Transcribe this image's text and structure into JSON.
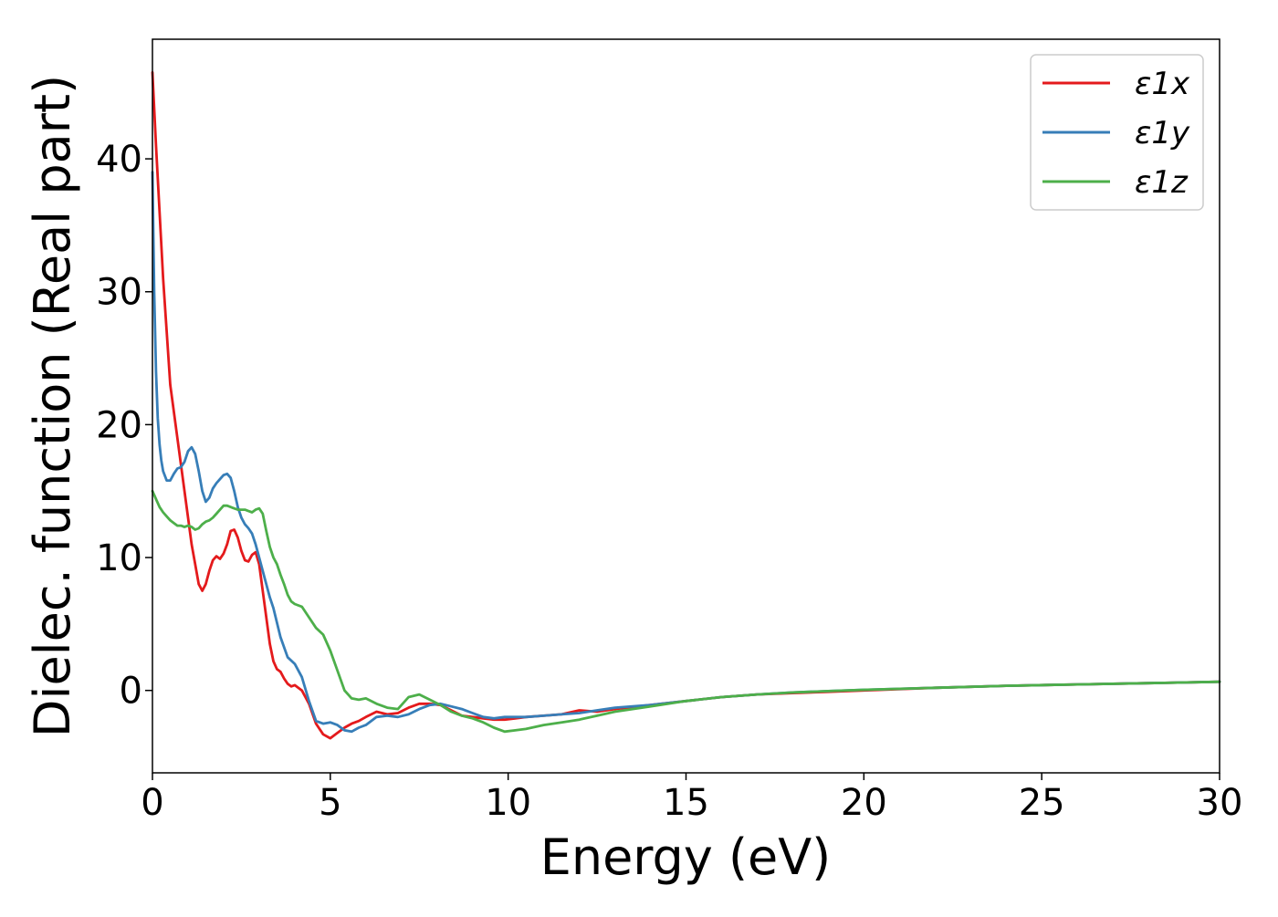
{
  "chart_data": {
    "type": "line",
    "title": "",
    "xlabel": "Energy (eV)",
    "ylabel": "Dielec. function (Real part)",
    "xlim": [
      0,
      30
    ],
    "ylim": [
      -6.2,
      49
    ],
    "xticks": [
      0,
      5,
      10,
      15,
      20,
      25,
      30
    ],
    "yticks": [
      0,
      10,
      20,
      30,
      40
    ],
    "grid": false,
    "legend_position": "top-right",
    "series": [
      {
        "name": "ε1x",
        "color": "#e41a1c",
        "x": [
          0,
          0.1,
          0.2,
          0.3,
          0.4,
          0.5,
          0.6,
          0.7,
          0.8,
          0.9,
          1.0,
          1.1,
          1.2,
          1.3,
          1.4,
          1.5,
          1.6,
          1.7,
          1.8,
          1.9,
          2.0,
          2.1,
          2.2,
          2.3,
          2.4,
          2.5,
          2.6,
          2.7,
          2.8,
          2.9,
          3.0,
          3.1,
          3.2,
          3.3,
          3.4,
          3.5,
          3.6,
          3.7,
          3.8,
          3.9,
          4.0,
          4.2,
          4.4,
          4.6,
          4.8,
          5.0,
          5.2,
          5.4,
          5.6,
          5.8,
          6.0,
          6.3,
          6.6,
          6.9,
          7.2,
          7.5,
          7.8,
          8.1,
          8.4,
          8.7,
          9.0,
          9.3,
          9.6,
          9.9,
          10.2,
          10.5,
          11.0,
          11.5,
          12.0,
          12.5,
          13.0,
          14.0,
          15.0,
          16.0,
          17.0,
          18.0,
          19.0,
          20.0,
          22.0,
          24.0,
          26.0,
          28.0,
          30.0
        ],
        "values": [
          46.5,
          41,
          36,
          31,
          27,
          23,
          21,
          19,
          17,
          15,
          13,
          11,
          9.5,
          8,
          7.5,
          8,
          9,
          9.8,
          10.1,
          9.9,
          10.3,
          11,
          12,
          12.1,
          11.5,
          10.5,
          9.8,
          9.7,
          10.2,
          10.4,
          9.5,
          7.5,
          5.5,
          3.5,
          2.2,
          1.6,
          1.4,
          0.9,
          0.5,
          0.3,
          0.4,
          0.0,
          -1.0,
          -2.5,
          -3.3,
          -3.6,
          -3.2,
          -2.8,
          -2.5,
          -2.3,
          -2.0,
          -1.6,
          -1.8,
          -1.7,
          -1.3,
          -1.0,
          -1.0,
          -1.1,
          -1.5,
          -1.9,
          -2.0,
          -2.1,
          -2.2,
          -2.2,
          -2.1,
          -2.0,
          -1.9,
          -1.8,
          -1.5,
          -1.6,
          -1.4,
          -1.1,
          -0.8,
          -0.5,
          -0.3,
          -0.2,
          -0.1,
          0.0,
          0.2,
          0.35,
          0.45,
          0.55,
          0.65
        ]
      },
      {
        "name": "ε1y",
        "color": "#377eb8",
        "x": [
          0,
          0.05,
          0.1,
          0.15,
          0.2,
          0.25,
          0.3,
          0.4,
          0.5,
          0.6,
          0.7,
          0.8,
          0.9,
          1.0,
          1.1,
          1.2,
          1.3,
          1.4,
          1.5,
          1.6,
          1.7,
          1.8,
          1.9,
          2.0,
          2.1,
          2.2,
          2.3,
          2.4,
          2.5,
          2.6,
          2.7,
          2.8,
          2.9,
          3.0,
          3.1,
          3.2,
          3.3,
          3.4,
          3.6,
          3.8,
          4.0,
          4.2,
          4.4,
          4.6,
          4.8,
          5.0,
          5.2,
          5.4,
          5.6,
          5.8,
          6.0,
          6.3,
          6.6,
          6.9,
          7.2,
          7.5,
          7.8,
          8.1,
          8.4,
          8.7,
          9.0,
          9.3,
          9.6,
          9.9,
          10.2,
          10.5,
          11.0,
          11.5,
          12.0,
          12.5,
          13.0,
          14.0,
          15.0,
          16.0,
          17.0,
          18.0,
          19.0,
          20.0,
          22.0,
          24.0,
          26.0,
          28.0,
          30.0
        ],
        "values": [
          39,
          30,
          24,
          20.5,
          18.5,
          17.3,
          16.5,
          15.8,
          15.8,
          16.3,
          16.7,
          16.8,
          17.2,
          18.0,
          18.3,
          17.8,
          16.5,
          15.0,
          14.2,
          14.5,
          15.2,
          15.6,
          15.9,
          16.2,
          16.3,
          16.0,
          15.0,
          13.8,
          13.0,
          12.5,
          12.2,
          11.8,
          11.0,
          10.0,
          9.0,
          8.0,
          7.0,
          6.2,
          4.0,
          2.5,
          2.0,
          1.0,
          -0.8,
          -2.3,
          -2.5,
          -2.4,
          -2.6,
          -3.0,
          -3.1,
          -2.8,
          -2.6,
          -2.0,
          -1.9,
          -2.0,
          -1.8,
          -1.4,
          -1.1,
          -1.0,
          -1.2,
          -1.4,
          -1.7,
          -2.0,
          -2.1,
          -2.0,
          -2.0,
          -2.0,
          -1.9,
          -1.8,
          -1.7,
          -1.5,
          -1.3,
          -1.1,
          -0.8,
          -0.5,
          -0.3,
          -0.15,
          -0.05,
          0.05,
          0.2,
          0.35,
          0.45,
          0.55,
          0.65
        ]
      },
      {
        "name": "ε1z",
        "color": "#4daf4a",
        "x": [
          0,
          0.1,
          0.2,
          0.3,
          0.4,
          0.5,
          0.6,
          0.7,
          0.8,
          0.9,
          1.0,
          1.1,
          1.2,
          1.3,
          1.4,
          1.5,
          1.6,
          1.7,
          1.8,
          1.9,
          2.0,
          2.1,
          2.2,
          2.3,
          2.4,
          2.5,
          2.6,
          2.7,
          2.8,
          2.9,
          3.0,
          3.1,
          3.2,
          3.3,
          3.4,
          3.5,
          3.6,
          3.7,
          3.8,
          3.9,
          4.0,
          4.2,
          4.4,
          4.6,
          4.8,
          5.0,
          5.2,
          5.4,
          5.6,
          5.8,
          6.0,
          6.3,
          6.6,
          6.9,
          7.2,
          7.5,
          7.8,
          8.1,
          8.4,
          8.7,
          9.0,
          9.3,
          9.6,
          9.9,
          10.2,
          10.5,
          11.0,
          11.5,
          12.0,
          12.5,
          13.0,
          14.0,
          15.0,
          16.0,
          17.0,
          18.0,
          19.0,
          20.0,
          22.0,
          24.0,
          26.0,
          28.0,
          30.0
        ],
        "values": [
          15.0,
          14.4,
          13.8,
          13.4,
          13.1,
          12.8,
          12.6,
          12.4,
          12.4,
          12.3,
          12.4,
          12.3,
          12.1,
          12.2,
          12.5,
          12.7,
          12.8,
          13.0,
          13.3,
          13.6,
          13.9,
          13.9,
          13.8,
          13.7,
          13.6,
          13.6,
          13.6,
          13.5,
          13.4,
          13.6,
          13.7,
          13.3,
          12.0,
          10.8,
          10.0,
          9.5,
          8.7,
          8.0,
          7.2,
          6.7,
          6.5,
          6.3,
          5.5,
          4.7,
          4.2,
          3.0,
          1.5,
          0.0,
          -0.6,
          -0.7,
          -0.6,
          -1.0,
          -1.3,
          -1.4,
          -0.5,
          -0.3,
          -0.7,
          -1.1,
          -1.6,
          -1.9,
          -2.1,
          -2.4,
          -2.8,
          -3.1,
          -3.0,
          -2.9,
          -2.6,
          -2.4,
          -2.2,
          -1.9,
          -1.6,
          -1.2,
          -0.8,
          -0.5,
          -0.3,
          -0.15,
          -0.05,
          0.05,
          0.2,
          0.35,
          0.45,
          0.55,
          0.65
        ]
      }
    ]
  }
}
